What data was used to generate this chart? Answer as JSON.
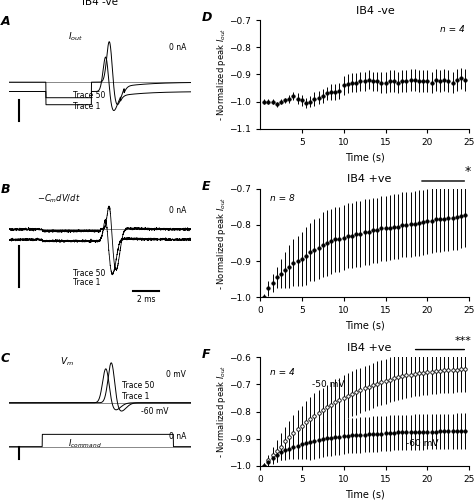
{
  "panel_D": {
    "title": "IB4 -ve",
    "label": "D",
    "n_label": "n = 4",
    "ylabel": "- Normalized peak $I_{out}$",
    "xlabel": "Time (s)",
    "xlim": [
      0,
      25
    ],
    "ylim": [
      -1.1,
      -0.7
    ],
    "yticks": [
      -1.1,
      -1.0,
      -0.9,
      -0.8,
      -0.7
    ],
    "xticks": [
      5,
      10,
      15,
      20,
      25
    ],
    "time": [
      0.5,
      1,
      1.5,
      2,
      2.5,
      3,
      3.5,
      4,
      4.5,
      5,
      5.5,
      6,
      6.5,
      7,
      7.5,
      8,
      8.5,
      9,
      9.5,
      10,
      10.5,
      11,
      11.5,
      12,
      12.5,
      13,
      13.5,
      14,
      14.5,
      15,
      15.5,
      16,
      16.5,
      17,
      17.5,
      18,
      18.5,
      19,
      19.5,
      20,
      20.5,
      21,
      21.5,
      22,
      22.5,
      23,
      23.5,
      24,
      24.5
    ],
    "mean": [
      -1.0,
      -1.0,
      -1.0,
      -1.01,
      -1.0,
      -0.995,
      -0.99,
      -0.98,
      -0.99,
      -0.995,
      -1.005,
      -1.0,
      -0.99,
      -0.985,
      -0.98,
      -0.97,
      -0.965,
      -0.965,
      -0.96,
      -0.94,
      -0.935,
      -0.93,
      -0.93,
      -0.925,
      -0.925,
      -0.92,
      -0.925,
      -0.925,
      -0.93,
      -0.93,
      -0.925,
      -0.925,
      -0.93,
      -0.925,
      -0.925,
      -0.92,
      -0.92,
      -0.925,
      -0.925,
      -0.925,
      -0.93,
      -0.92,
      -0.925,
      -0.92,
      -0.925,
      -0.93,
      -0.92,
      -0.915,
      -0.92
    ],
    "sem": [
      0.01,
      0.01,
      0.01,
      0.01,
      0.01,
      0.01,
      0.015,
      0.015,
      0.02,
      0.02,
      0.02,
      0.02,
      0.025,
      0.025,
      0.025,
      0.025,
      0.03,
      0.03,
      0.03,
      0.035,
      0.035,
      0.035,
      0.035,
      0.035,
      0.035,
      0.035,
      0.035,
      0.035,
      0.04,
      0.04,
      0.04,
      0.04,
      0.04,
      0.04,
      0.04,
      0.04,
      0.04,
      0.04,
      0.04,
      0.04,
      0.04,
      0.04,
      0.04,
      0.04,
      0.04,
      0.04,
      0.04,
      0.04,
      0.04
    ]
  },
  "panel_E": {
    "title": "IB4 +ve",
    "label": "E",
    "n_label": "n = 8",
    "ylabel": "- Normalized peak $I_{out}$",
    "xlabel": "Time (s)",
    "xlim": [
      0,
      25
    ],
    "ylim": [
      -1.0,
      -0.7
    ],
    "yticks": [
      -1.0,
      -0.9,
      -0.8,
      -0.7
    ],
    "xticks": [
      0,
      5,
      10,
      15,
      20,
      25
    ],
    "time": [
      0.5,
      1,
      1.5,
      2,
      2.5,
      3,
      3.5,
      4,
      4.5,
      5,
      5.5,
      6,
      6.5,
      7,
      7.5,
      8,
      8.5,
      9,
      9.5,
      10,
      10.5,
      11,
      11.5,
      12,
      12.5,
      13,
      13.5,
      14,
      14.5,
      15,
      15.5,
      16,
      16.5,
      17,
      17.5,
      18,
      18.5,
      19,
      19.5,
      20,
      20.5,
      21,
      21.5,
      22,
      22.5,
      23,
      23.5,
      24,
      24.5
    ],
    "mean": [
      -1.0,
      -0.975,
      -0.96,
      -0.945,
      -0.935,
      -0.925,
      -0.915,
      -0.905,
      -0.9,
      -0.895,
      -0.885,
      -0.875,
      -0.87,
      -0.865,
      -0.855,
      -0.85,
      -0.845,
      -0.84,
      -0.84,
      -0.835,
      -0.83,
      -0.83,
      -0.825,
      -0.825,
      -0.82,
      -0.82,
      -0.815,
      -0.815,
      -0.81,
      -0.81,
      -0.808,
      -0.805,
      -0.805,
      -0.8,
      -0.8,
      -0.798,
      -0.797,
      -0.795,
      -0.793,
      -0.79,
      -0.788,
      -0.785,
      -0.785,
      -0.783,
      -0.782,
      -0.78,
      -0.778,
      -0.775,
      -0.772
    ],
    "sem": [
      0.01,
      0.02,
      0.025,
      0.03,
      0.04,
      0.05,
      0.06,
      0.065,
      0.07,
      0.075,
      0.08,
      0.08,
      0.085,
      0.085,
      0.09,
      0.09,
      0.09,
      0.09,
      0.09,
      0.09,
      0.09,
      0.09,
      0.09,
      0.09,
      0.09,
      0.09,
      0.09,
      0.09,
      0.09,
      0.09,
      0.09,
      0.09,
      0.09,
      0.09,
      0.09,
      0.09,
      0.09,
      0.09,
      0.09,
      0.09,
      0.09,
      0.09,
      0.09,
      0.09,
      0.09,
      0.09,
      0.09,
      0.09,
      0.09
    ]
  },
  "panel_F": {
    "title": "IB4 +ve",
    "label": "F",
    "n_label": "n = 4",
    "ylabel": "- Normalized peak $I_{out}$",
    "xlabel": "Time (s)",
    "xlim": [
      0,
      25
    ],
    "ylim": [
      -1.0,
      -0.6
    ],
    "yticks": [
      -1.0,
      -0.9,
      -0.8,
      -0.7,
      -0.6
    ],
    "xticks": [
      0,
      5,
      10,
      15,
      20,
      25
    ],
    "label_open": "-50 mV",
    "label_closed": "-60 mV",
    "time": [
      0.5,
      1,
      1.5,
      2,
      2.5,
      3,
      3.5,
      4,
      4.5,
      5,
      5.5,
      6,
      6.5,
      7,
      7.5,
      8,
      8.5,
      9,
      9.5,
      10,
      10.5,
      11,
      11.5,
      12,
      12.5,
      13,
      13.5,
      14,
      14.5,
      15,
      15.5,
      16,
      16.5,
      17,
      17.5,
      18,
      18.5,
      19,
      19.5,
      20,
      20.5,
      21,
      21.5,
      22,
      22.5,
      23,
      23.5,
      24,
      24.5
    ],
    "mean_open": [
      -1.0,
      -0.98,
      -0.96,
      -0.945,
      -0.93,
      -0.91,
      -0.895,
      -0.878,
      -0.865,
      -0.853,
      -0.84,
      -0.828,
      -0.815,
      -0.805,
      -0.795,
      -0.785,
      -0.775,
      -0.765,
      -0.758,
      -0.75,
      -0.742,
      -0.735,
      -0.728,
      -0.722,
      -0.715,
      -0.71,
      -0.704,
      -0.698,
      -0.693,
      -0.688,
      -0.683,
      -0.678,
      -0.674,
      -0.67,
      -0.667,
      -0.664,
      -0.661,
      -0.659,
      -0.657,
      -0.655,
      -0.653,
      -0.651,
      -0.65,
      -0.649,
      -0.648,
      -0.647,
      -0.646,
      -0.645,
      -0.644
    ],
    "sem_open": [
      0.01,
      0.02,
      0.03,
      0.04,
      0.05,
      0.055,
      0.06,
      0.065,
      0.07,
      0.075,
      0.08,
      0.08,
      0.082,
      0.083,
      0.083,
      0.083,
      0.083,
      0.083,
      0.083,
      0.083,
      0.083,
      0.083,
      0.083,
      0.083,
      0.083,
      0.083,
      0.083,
      0.083,
      0.083,
      0.083,
      0.083,
      0.083,
      0.083,
      0.083,
      0.083,
      0.083,
      0.083,
      0.083,
      0.083,
      0.083,
      0.083,
      0.083,
      0.083,
      0.083,
      0.083,
      0.083,
      0.083,
      0.083,
      0.083
    ],
    "mean_closed": [
      -1.0,
      -0.985,
      -0.972,
      -0.96,
      -0.95,
      -0.942,
      -0.936,
      -0.93,
      -0.925,
      -0.92,
      -0.916,
      -0.912,
      -0.908,
      -0.905,
      -0.902,
      -0.899,
      -0.897,
      -0.895,
      -0.893,
      -0.891,
      -0.889,
      -0.888,
      -0.887,
      -0.886,
      -0.885,
      -0.884,
      -0.883,
      -0.882,
      -0.881,
      -0.88,
      -0.879,
      -0.878,
      -0.877,
      -0.877,
      -0.876,
      -0.876,
      -0.875,
      -0.875,
      -0.875,
      -0.874,
      -0.874,
      -0.874,
      -0.873,
      -0.873,
      -0.873,
      -0.873,
      -0.872,
      -0.872,
      -0.872
    ],
    "sem_closed": [
      0.01,
      0.015,
      0.02,
      0.025,
      0.03,
      0.035,
      0.04,
      0.045,
      0.05,
      0.055,
      0.06,
      0.065,
      0.065,
      0.065,
      0.065,
      0.065,
      0.065,
      0.065,
      0.065,
      0.065,
      0.065,
      0.065,
      0.065,
      0.065,
      0.065,
      0.065,
      0.065,
      0.065,
      0.065,
      0.065,
      0.065,
      0.065,
      0.065,
      0.065,
      0.065,
      0.065,
      0.065,
      0.065,
      0.065,
      0.065,
      0.065,
      0.065,
      0.065,
      0.065,
      0.065,
      0.065,
      0.065,
      0.065,
      0.065
    ]
  }
}
